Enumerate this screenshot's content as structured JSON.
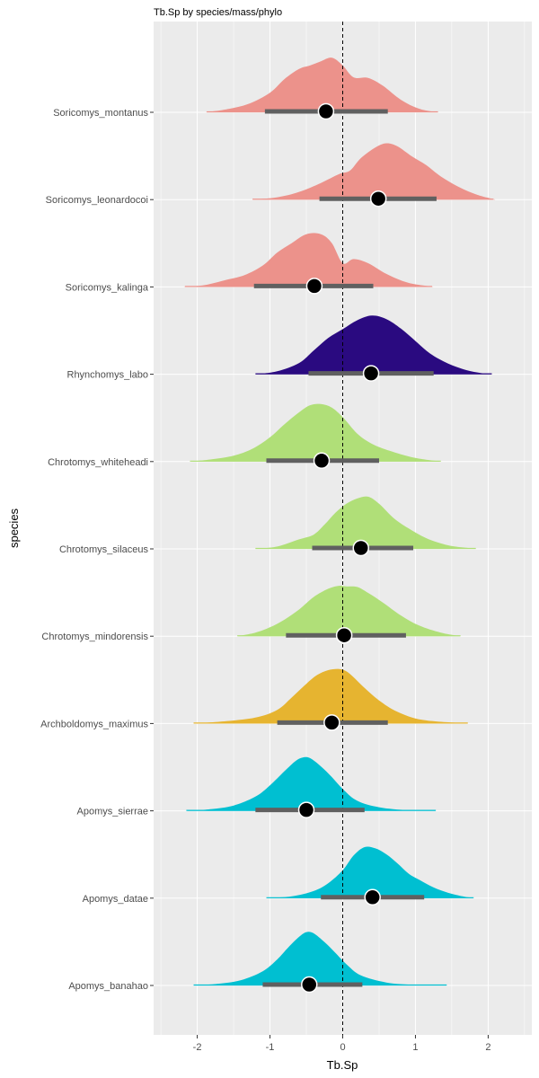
{
  "chart_data": {
    "type": "halfeye",
    "title": "Tb.Sp by species/mass/phylo",
    "xlabel": "Tb.Sp",
    "ylabel": "species",
    "xlim": [
      -2.6,
      2.6
    ],
    "x_ticks": [
      -2,
      -1,
      0,
      1,
      2
    ],
    "reference_line_x": 0,
    "colors": {
      "panel": "#EBEBEB",
      "grid": "#FFFFFF",
      "interval": "#606060",
      "point": "#000000",
      "Soricomys": "#EC928B",
      "Rhynchomys": "#2A0A80",
      "Chrotomys": "#B0DF78",
      "Archboldomys": "#E6B430",
      "Apomys": "#00BFD1"
    },
    "series": [
      {
        "species": "Soricomys_montanus",
        "genus": "Soricomys",
        "point": -0.23,
        "interval": [
          -1.07,
          0.62
        ],
        "range": [
          -1.87,
          1.31
        ],
        "density_x": [
          -1.9,
          -1.6,
          -1.3,
          -1.0,
          -0.8,
          -0.6,
          -0.45,
          -0.3,
          -0.15,
          0.0,
          0.15,
          0.35,
          0.55,
          0.8,
          1.05,
          1.3
        ],
        "density_y": [
          0.0,
          0.05,
          0.14,
          0.33,
          0.56,
          0.73,
          0.79,
          0.86,
          0.92,
          0.79,
          0.59,
          0.58,
          0.45,
          0.21,
          0.06,
          0.0
        ]
      },
      {
        "species": "Soricomys_leonardocoi",
        "genus": "Soricomys",
        "point": 0.49,
        "interval": [
          -0.32,
          1.29
        ],
        "range": [
          -1.24,
          2.07
        ],
        "density_x": [
          -1.25,
          -0.9,
          -0.6,
          -0.3,
          -0.05,
          0.1,
          0.25,
          0.45,
          0.6,
          0.75,
          0.95,
          1.15,
          1.35,
          1.6,
          1.85,
          2.1
        ],
        "density_y": [
          0.0,
          0.04,
          0.13,
          0.28,
          0.43,
          0.49,
          0.7,
          0.88,
          0.95,
          0.9,
          0.73,
          0.58,
          0.39,
          0.21,
          0.08,
          0.0
        ]
      },
      {
        "species": "Soricomys_kalinga",
        "genus": "Soricomys",
        "point": -0.39,
        "interval": [
          -1.22,
          0.42
        ],
        "range": [
          -2.17,
          1.23
        ],
        "density_x": [
          -2.2,
          -1.9,
          -1.6,
          -1.35,
          -1.1,
          -0.9,
          -0.7,
          -0.5,
          -0.3,
          -0.15,
          0.0,
          0.15,
          0.35,
          0.6,
          0.9,
          1.25
        ],
        "density_y": [
          0.0,
          0.03,
          0.12,
          0.2,
          0.36,
          0.58,
          0.74,
          0.89,
          0.89,
          0.74,
          0.4,
          0.47,
          0.4,
          0.22,
          0.07,
          0.0
        ]
      },
      {
        "species": "Rhynchomys_labo",
        "genus": "Rhynchomys",
        "point": 0.39,
        "interval": [
          -0.47,
          1.25
        ],
        "range": [
          -1.2,
          2.05
        ],
        "density_x": [
          -1.2,
          -0.9,
          -0.6,
          -0.4,
          -0.2,
          0.0,
          0.2,
          0.4,
          0.6,
          0.8,
          1.0,
          1.2,
          1.45,
          1.7,
          1.9,
          2.05
        ],
        "density_y": [
          0.0,
          0.05,
          0.19,
          0.4,
          0.61,
          0.76,
          0.91,
          0.99,
          0.93,
          0.77,
          0.56,
          0.35,
          0.18,
          0.07,
          0.02,
          0.0
        ]
      },
      {
        "species": "Chrotomys_whiteheadi",
        "genus": "Chrotomys",
        "point": -0.29,
        "interval": [
          -1.05,
          0.5
        ],
        "range": [
          -2.1,
          1.35
        ],
        "density_x": [
          -2.1,
          -1.8,
          -1.5,
          -1.25,
          -1.0,
          -0.8,
          -0.6,
          -0.45,
          -0.3,
          -0.15,
          0.0,
          0.2,
          0.4,
          0.65,
          1.0,
          1.35
        ],
        "density_y": [
          0.0,
          0.04,
          0.1,
          0.21,
          0.41,
          0.63,
          0.83,
          0.95,
          0.97,
          0.91,
          0.75,
          0.47,
          0.3,
          0.18,
          0.06,
          0.0
        ]
      },
      {
        "species": "Chrotomys_silaceus",
        "genus": "Chrotomys",
        "point": 0.25,
        "interval": [
          -0.42,
          0.97
        ],
        "range": [
          -1.2,
          1.83
        ],
        "density_x": [
          -1.2,
          -0.9,
          -0.6,
          -0.4,
          -0.25,
          -0.1,
          0.05,
          0.2,
          0.35,
          0.5,
          0.7,
          0.9,
          1.15,
          1.45,
          1.7,
          1.85
        ],
        "density_y": [
          0.0,
          0.04,
          0.16,
          0.24,
          0.41,
          0.61,
          0.76,
          0.85,
          0.88,
          0.76,
          0.52,
          0.35,
          0.18,
          0.06,
          0.02,
          0.0
        ]
      },
      {
        "species": "Chrotomys_mindorensis",
        "genus": "Chrotomys",
        "point": 0.02,
        "interval": [
          -0.78,
          0.87
        ],
        "range": [
          -1.45,
          1.62
        ],
        "density_x": [
          -1.45,
          -1.2,
          -1.0,
          -0.8,
          -0.6,
          -0.4,
          -0.2,
          -0.05,
          0.05,
          0.2,
          0.35,
          0.55,
          0.8,
          1.05,
          1.35,
          1.62
        ],
        "density_y": [
          0.0,
          0.06,
          0.15,
          0.28,
          0.45,
          0.66,
          0.8,
          0.85,
          0.84,
          0.83,
          0.73,
          0.57,
          0.35,
          0.18,
          0.06,
          0.0
        ]
      },
      {
        "species": "Archboldomys_maximus",
        "genus": "Archboldomys",
        "point": -0.15,
        "interval": [
          -0.9,
          0.62
        ],
        "range": [
          -2.05,
          1.72
        ],
        "density_x": [
          -2.05,
          -1.6,
          -1.2,
          -0.9,
          -0.7,
          -0.5,
          -0.35,
          -0.2,
          -0.05,
          0.05,
          0.15,
          0.3,
          0.5,
          0.75,
          1.1,
          1.72
        ],
        "density_y": [
          0.0,
          0.04,
          0.1,
          0.23,
          0.44,
          0.67,
          0.82,
          0.9,
          0.92,
          0.88,
          0.78,
          0.6,
          0.39,
          0.2,
          0.06,
          0.0
        ]
      },
      {
        "species": "Apomys_sierrae",
        "genus": "Apomys",
        "point": -0.5,
        "interval": [
          -1.2,
          0.3
        ],
        "range": [
          -2.15,
          1.28
        ],
        "density_x": [
          -2.15,
          -1.8,
          -1.5,
          -1.2,
          -1.0,
          -0.8,
          -0.65,
          -0.55,
          -0.45,
          -0.3,
          -0.15,
          0.0,
          0.2,
          0.5,
          0.9,
          1.28
        ],
        "density_y": [
          0.0,
          0.03,
          0.09,
          0.24,
          0.43,
          0.67,
          0.84,
          0.9,
          0.89,
          0.75,
          0.57,
          0.37,
          0.17,
          0.06,
          0.01,
          0.0
        ]
      },
      {
        "species": "Apomys_datae",
        "genus": "Apomys",
        "point": 0.41,
        "interval": [
          -0.3,
          1.12
        ],
        "range": [
          -1.05,
          1.8
        ],
        "density_x": [
          -1.05,
          -0.7,
          -0.4,
          -0.2,
          0.0,
          0.15,
          0.3,
          0.45,
          0.6,
          0.75,
          0.9,
          1.05,
          1.25,
          1.45,
          1.65,
          1.8
        ],
        "density_y": [
          0.0,
          0.03,
          0.12,
          0.25,
          0.47,
          0.72,
          0.86,
          0.84,
          0.74,
          0.59,
          0.42,
          0.31,
          0.18,
          0.09,
          0.03,
          0.0
        ]
      },
      {
        "species": "Apomys_banahao",
        "genus": "Apomys",
        "point": -0.46,
        "interval": [
          -1.1,
          0.27
        ],
        "range": [
          -2.05,
          1.43
        ],
        "density_x": [
          -2.05,
          -1.7,
          -1.4,
          -1.1,
          -0.9,
          -0.75,
          -0.6,
          -0.5,
          -0.4,
          -0.25,
          -0.1,
          0.05,
          0.25,
          0.6,
          1.0,
          1.43
        ],
        "density_y": [
          0.0,
          0.03,
          0.09,
          0.24,
          0.44,
          0.64,
          0.82,
          0.9,
          0.88,
          0.73,
          0.55,
          0.36,
          0.17,
          0.05,
          0.01,
          0.0
        ]
      }
    ]
  }
}
